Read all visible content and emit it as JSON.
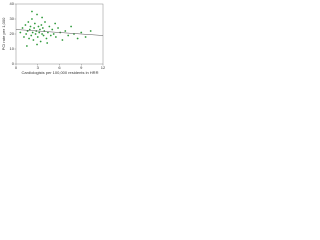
{
  "chart_data": {
    "type": "scatter",
    "x_label": "Cardiologists per 100,000 residents in HRR",
    "y_label": "PCI rate per 1,000",
    "xlim": [
      0,
      12
    ],
    "xticks": [
      0,
      3,
      6,
      9,
      12
    ],
    "ylim": [
      0,
      40
    ],
    "yticks": [
      0,
      10,
      20,
      30,
      40
    ],
    "color": "#2e9a3a",
    "x": [
      0.6,
      0.9,
      1.1,
      1.3,
      1.4,
      1.6,
      1.7,
      1.8,
      1.9,
      2.0,
      2.1,
      2.2,
      2.3,
      2.4,
      2.5,
      2.6,
      2.7,
      2.8,
      2.9,
      3.0,
      3.1,
      3.2,
      3.3,
      3.4,
      3.5,
      3.6,
      3.7,
      3.8,
      3.9,
      4.0,
      4.2,
      4.4,
      4.6,
      4.8,
      5.0,
      5.2,
      5.5,
      5.8,
      6.1,
      6.4,
      6.8,
      7.2,
      7.6,
      8.0,
      8.5,
      9.0,
      9.6,
      10.3,
      1.5,
      2.2,
      2.9,
      3.6,
      4.3,
      5.4
    ],
    "values": [
      21,
      24,
      18,
      26,
      20,
      22,
      28,
      17,
      23,
      25,
      19,
      30,
      21,
      16,
      24,
      27,
      20,
      22,
      33,
      18,
      25,
      21,
      23,
      15,
      26,
      20,
      24,
      19,
      22,
      28,
      17,
      21,
      25,
      19,
      23,
      20,
      18,
      24,
      21,
      16,
      22,
      19,
      25,
      20,
      17,
      21,
      18,
      22,
      12,
      35,
      13,
      31,
      14,
      27
    ],
    "trendline": {
      "x": [
        0,
        12
      ],
      "y": [
        23,
        19
      ]
    }
  }
}
